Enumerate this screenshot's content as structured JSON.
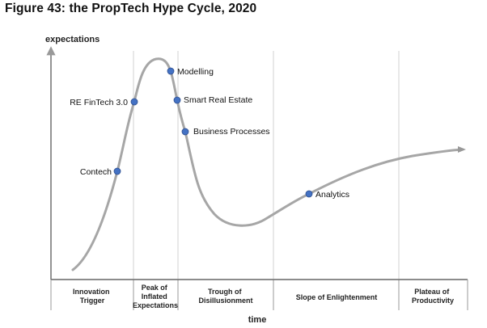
{
  "figure": {
    "title": "Figure 43: the PropTech Hype Cycle, 2020"
  },
  "axes": {
    "y_label": "expectations",
    "x_label": "time"
  },
  "phases": [
    {
      "lines": [
        "Innovation",
        "Trigger"
      ]
    },
    {
      "lines": [
        "Peak of",
        "Inflated",
        "Expectations"
      ]
    },
    {
      "lines": [
        "Trough of",
        "Disillusionment"
      ]
    },
    {
      "lines": [
        "Slope of Enlightenment"
      ]
    },
    {
      "lines": [
        "Plateau of",
        "Productivity"
      ]
    }
  ],
  "technologies": [
    {
      "name": "Contech",
      "phase": "Innovation Trigger"
    },
    {
      "name": "RE FinTech 3.0",
      "phase": "Peak of Inflated Expectations"
    },
    {
      "name": "Modelling",
      "phase": "Peak of Inflated Expectations"
    },
    {
      "name": "Smart Real Estate",
      "phase": "Trough of Disillusionment"
    },
    {
      "name": "Business Processes",
      "phase": "Trough of Disillusionment"
    },
    {
      "name": "Analytics",
      "phase": "Slope of Enlightenment"
    }
  ],
  "colors": {
    "curve": "#a6a6a6",
    "marker": "#4472c4",
    "marker_stroke": "#2f4f8f",
    "grid": "#d0d0d0",
    "axis": "#666666"
  }
}
